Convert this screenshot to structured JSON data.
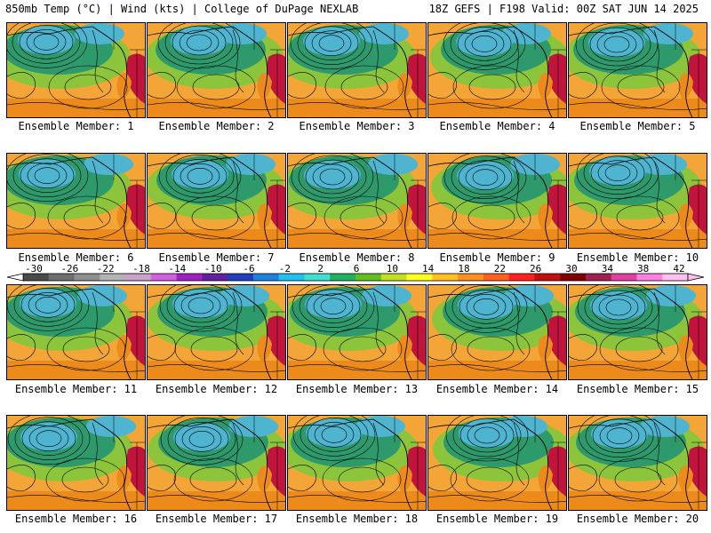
{
  "header": {
    "left": "850mb Temp (°C) | Wind (kts) | College of DuPage NEXLAB",
    "right": "18Z GEFS | F198 Valid: 00Z SAT JUN 14 2025"
  },
  "member_prefix": "Ensemble Member: ",
  "members": [
    "1",
    "2",
    "3",
    "4",
    "5",
    "6",
    "7",
    "8",
    "9",
    "10",
    "11",
    "12",
    "13",
    "14",
    "15",
    "16",
    "17",
    "18",
    "19",
    "20"
  ],
  "colorbar": {
    "labels": [
      "-30",
      "-26",
      "-22",
      "-18",
      "-14",
      "-10",
      "-6",
      "-2",
      "2",
      "6",
      "10",
      "14",
      "18",
      "22",
      "26",
      "30",
      "34",
      "38",
      "42"
    ],
    "colors": [
      "#4a4a4a",
      "#6e6e6e",
      "#8f8f8f",
      "#b3b3b3",
      "#c8a2c8",
      "#d060e0",
      "#a020c0",
      "#6020a0",
      "#2040c0",
      "#2080e0",
      "#20c0f0",
      "#40e0d0",
      "#20b060",
      "#60c020",
      "#c0e020",
      "#ffff20",
      "#ffc020",
      "#ff9020",
      "#ff6020",
      "#ff2020",
      "#c01010",
      "#800000",
      "#a02050",
      "#e040a0",
      "#ff80e0",
      "#ffc0f0"
    ]
  },
  "palette": {
    "cold": "#4fb4d0",
    "cool": "#2e9a6c",
    "mild": "#8cc43c",
    "warm": "#f3a637",
    "hot": "#ec8a1c",
    "very_hot": "#c0143c"
  }
}
